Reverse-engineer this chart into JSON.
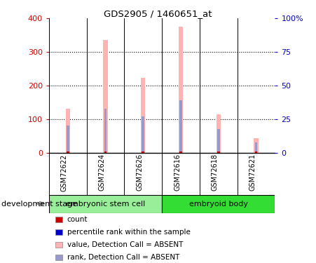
{
  "title": "GDS2905 / 1460651_at",
  "samples": [
    "GSM72622",
    "GSM72624",
    "GSM72626",
    "GSM72616",
    "GSM72618",
    "GSM72621"
  ],
  "pink_values": [
    130,
    336,
    223,
    375,
    115,
    42
  ],
  "blue_rank_values": [
    80,
    130,
    107,
    155,
    70,
    30
  ],
  "red_count_values": [
    3,
    3,
    3,
    3,
    3,
    3
  ],
  "ylim_left": [
    0,
    400
  ],
  "ylim_right": [
    0,
    100
  ],
  "yticks_left": [
    0,
    100,
    200,
    300,
    400
  ],
  "yticks_right": [
    0,
    25,
    50,
    75,
    100
  ],
  "ytick_labels_right": [
    "0",
    "25",
    "50",
    "75",
    "100%"
  ],
  "left_tick_color": "#cc0000",
  "right_tick_color": "#0000cc",
  "bar_pink": "#ffb3b3",
  "bar_blue": "#9999cc",
  "bar_red": "#cc0000",
  "group_color_left": "#99ee99",
  "group_color_right": "#33dd33",
  "sample_bg": "#cccccc",
  "legend_items": [
    {
      "label": "count",
      "color": "#cc0000"
    },
    {
      "label": "percentile rank within the sample",
      "color": "#0000cc"
    },
    {
      "label": "value, Detection Call = ABSENT",
      "color": "#ffb3b3"
    },
    {
      "label": "rank, Detection Call = ABSENT",
      "color": "#9999cc"
    }
  ]
}
